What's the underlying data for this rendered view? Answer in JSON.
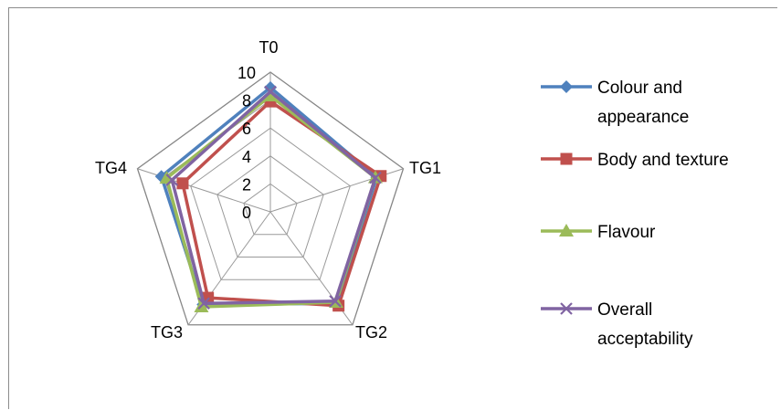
{
  "chart_data": {
    "type": "radar",
    "categories": [
      "T0",
      "TG1",
      "TG2",
      "TG3",
      "TG4"
    ],
    "rmin": 0,
    "rmax": 10,
    "ticks": [
      "0",
      "2",
      "4",
      "6",
      "8",
      "10"
    ],
    "series": [
      {
        "name_lines": [
          "Colour and",
          "appearance"
        ],
        "color": "#4f81bd",
        "marker": "diamond",
        "values": [
          8.9,
          8.0,
          8.1,
          8.2,
          8.2
        ]
      },
      {
        "name_lines": [
          "Body and texture"
        ],
        "color": "#c0504d",
        "marker": "square",
        "values": [
          7.9,
          8.3,
          8.3,
          7.6,
          6.6
        ]
      },
      {
        "name_lines": [
          "Flavour"
        ],
        "color": "#9bbb59",
        "marker": "triangle",
        "values": [
          8.3,
          7.9,
          8.0,
          8.4,
          7.8
        ]
      },
      {
        "name_lines": [
          "Overall",
          "acceptability"
        ],
        "color": "#8064a2",
        "marker": "x",
        "values": [
          8.6,
          7.9,
          7.9,
          8.1,
          7.4
        ]
      }
    ]
  }
}
